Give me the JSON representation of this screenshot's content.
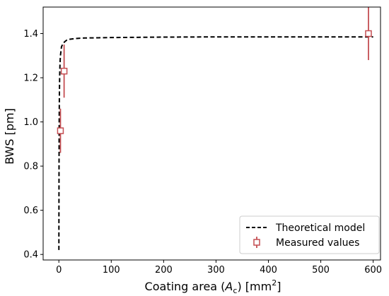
{
  "chart_data": {
    "type": "line",
    "xlabel_main": "Coating area (",
    "xlabel_var": "A",
    "xlabel_sub": "c",
    "xlabel_mid": ") [mm",
    "xlabel_sup": "2",
    "xlabel_end": "]",
    "ylabel": "BWS [pm]",
    "xlim": [
      -30,
      614
    ],
    "ylim": [
      0.375,
      1.52
    ],
    "xticks": [
      0,
      100,
      200,
      300,
      400,
      500,
      600
    ],
    "yticks": [
      0.4,
      0.6,
      0.8,
      1.0,
      1.2,
      1.4
    ],
    "legend_position": "lower-right",
    "grid": false,
    "series": [
      {
        "name": "Theoretical model",
        "kind": "dashed-line",
        "color": "#000000",
        "x": [
          0.05,
          0.1,
          0.2,
          0.3,
          0.5,
          0.7,
          1,
          1.5,
          2,
          2.5,
          3,
          4,
          5,
          6,
          7,
          8,
          10,
          12,
          15,
          20,
          30,
          40,
          50,
          75,
          100,
          150,
          200,
          300,
          400,
          500,
          600
        ],
        "values": [
          0.42,
          0.5,
          0.65,
          0.77,
          0.93,
          1.03,
          1.12,
          1.2,
          1.25,
          1.28,
          1.3,
          1.32,
          1.34,
          1.345,
          1.35,
          1.355,
          1.36,
          1.365,
          1.37,
          1.374,
          1.377,
          1.379,
          1.38,
          1.381,
          1.382,
          1.383,
          1.384,
          1.385,
          1.385,
          1.385,
          1.385
        ]
      },
      {
        "name": "Measured values",
        "kind": "errorbar",
        "color": "#c44e52",
        "points": [
          {
            "x": 3,
            "y": 0.96,
            "err": 0.1
          },
          {
            "x": 10,
            "y": 1.23,
            "err": 0.12
          },
          {
            "x": 591,
            "y": 1.4,
            "err": 0.12
          }
        ]
      }
    ]
  }
}
